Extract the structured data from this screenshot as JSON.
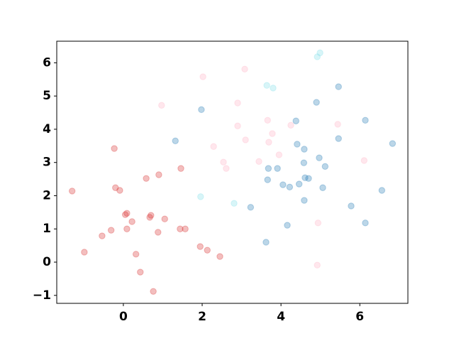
{
  "chart_data": {
    "type": "scatter",
    "series": [
      {
        "color": "#d62728",
        "x": [
          -1.3,
          -0.99,
          -0.54,
          -0.31,
          -0.23,
          -0.2,
          -0.09,
          0.05,
          0.09,
          0.09,
          0.22,
          0.32,
          0.43,
          0.58,
          0.67,
          0.7,
          0.76,
          0.88,
          0.9,
          1.05,
          1.46,
          1.44,
          1.57,
          1.95,
          2.13,
          2.45
        ],
        "y": [
          2.14,
          0.3,
          0.79,
          0.96,
          3.42,
          2.24,
          2.16,
          1.43,
          1.47,
          1.0,
          1.22,
          0.24,
          -0.3,
          2.52,
          1.35,
          1.41,
          -0.88,
          0.9,
          2.63,
          1.3,
          2.82,
          1.0,
          1.0,
          0.47,
          0.36,
          0.17
        ]
      },
      {
        "color": "#ffb0c4",
        "x": [
          0.97,
          2.02,
          2.29,
          2.54,
          2.61,
          2.9,
          2.9,
          3.08,
          3.1,
          3.44,
          3.66,
          3.69,
          3.78,
          3.95,
          4.25,
          4.94,
          4.92,
          5.44,
          6.11
        ],
        "y": [
          4.72,
          5.58,
          3.48,
          3.01,
          2.82,
          4.79,
          4.1,
          5.81,
          3.68,
          3.03,
          4.27,
          3.61,
          3.87,
          3.23,
          4.12,
          1.18,
          -0.09,
          4.15,
          3.06
        ]
      },
      {
        "color": "#7fdde9",
        "x": [
          1.96,
          2.81,
          3.64,
          3.8,
          4.92,
          4.99
        ],
        "y": [
          1.97,
          1.77,
          5.32,
          5.24,
          6.18,
          6.3
        ]
      },
      {
        "color": "#1f77b4",
        "x": [
          1.32,
          1.98,
          3.23,
          3.62,
          3.66,
          3.68,
          3.91,
          4.05,
          4.16,
          4.22,
          4.38,
          4.41,
          4.46,
          4.58,
          4.59,
          4.59,
          4.61,
          4.7,
          4.9,
          4.97,
          5.06,
          5.12,
          5.46,
          5.46,
          5.78,
          6.14,
          6.14,
          6.56,
          6.83
        ],
        "y": [
          3.65,
          4.59,
          1.65,
          0.6,
          2.48,
          2.82,
          2.82,
          2.33,
          1.11,
          2.26,
          4.25,
          3.55,
          2.35,
          2.99,
          1.86,
          3.4,
          2.54,
          2.52,
          4.81,
          3.14,
          2.24,
          2.88,
          5.28,
          3.72,
          1.69,
          1.18,
          4.27,
          2.16,
          3.57
        ]
      }
    ],
    "xlim": [
      -1.69,
      7.22
    ],
    "xticks": [
      0,
      2,
      4,
      6
    ],
    "ylim": [
      -1.24,
      6.65
    ],
    "yticks": [
      {
        "value": -1,
        "label": "−1"
      },
      0,
      1,
      2,
      3,
      4,
      5,
      6
    ]
  }
}
